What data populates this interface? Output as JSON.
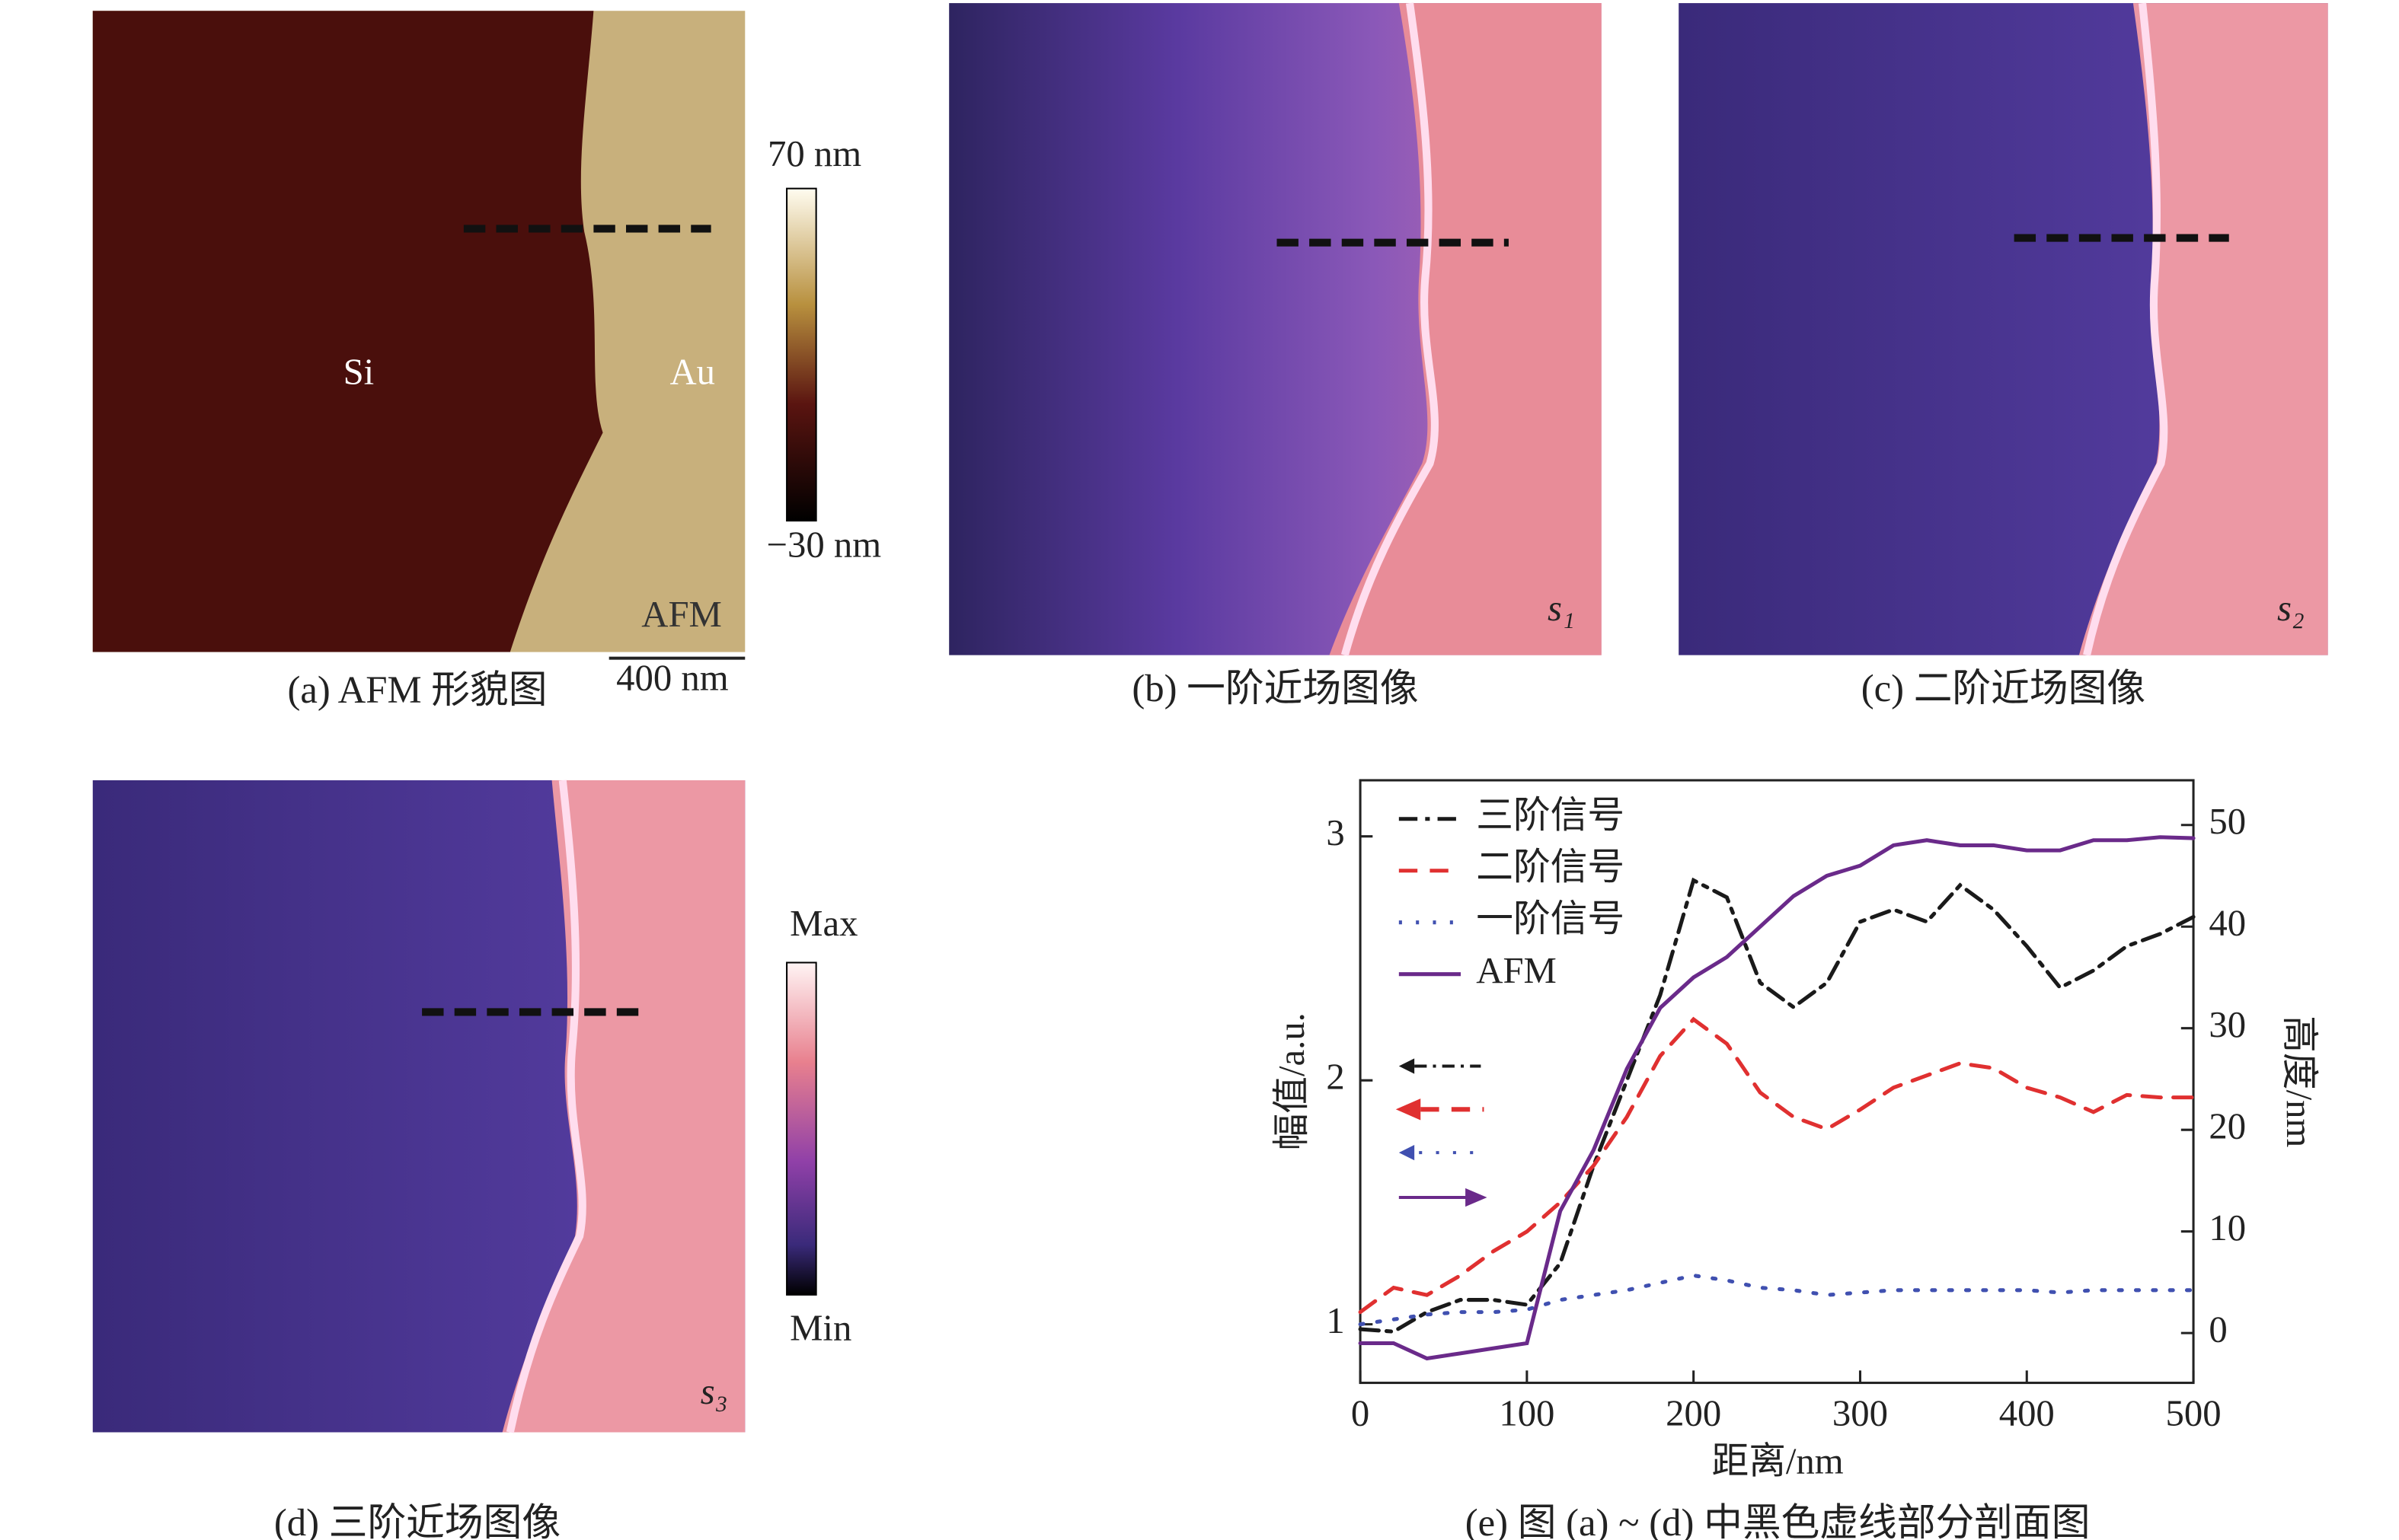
{
  "panels": [
    {
      "caption": "(a) AFM 形貌图",
      "labels": [
        "Si",
        "Au",
        "AFM"
      ],
      "colorbar": [
        "70 nm",
        "−30 nm"
      ],
      "scalebar": "400 nm"
    },
    {
      "caption": "(b) 一阶近场图像",
      "labels": [
        "s₁"
      ]
    },
    {
      "caption": "(c) 二阶近场图像",
      "labels": [
        "s₂"
      ]
    },
    {
      "caption": "(d) 三阶近场图像",
      "labels": [
        "s₃"
      ],
      "colorbar": [
        "Max",
        "Min"
      ]
    }
  ],
  "chart_data": {
    "type": "line",
    "caption": "(e) 图 (a) ~ (d) 中黑色虚线部分剖面图",
    "xlabel": "距离/nm",
    "ylabel": "幅值/a.u.",
    "y2label": "高度/nm",
    "x": [
      0,
      20,
      40,
      60,
      80,
      100,
      120,
      140,
      160,
      180,
      200,
      220,
      240,
      260,
      280,
      300,
      320,
      340,
      360,
      380,
      400,
      420,
      440,
      460,
      480,
      500
    ],
    "xlim": [
      0,
      500
    ],
    "xticks": [
      0,
      100,
      200,
      300,
      400,
      500
    ],
    "ylim": [
      0.76,
      3.23
    ],
    "yticks": [
      1,
      2,
      3
    ],
    "y2lim": [
      -4.9,
      54.4
    ],
    "y2ticks": [
      0,
      10,
      20,
      30,
      40,
      50
    ],
    "series": [
      {
        "name": "三阶信号",
        "color": "#1a1a1a",
        "dash": "12 5 3 5",
        "values": [
          0.98,
          0.97,
          1.05,
          1.1,
          1.1,
          1.08,
          1.25,
          1.65,
          2.0,
          2.35,
          2.82,
          2.75,
          2.4,
          2.3,
          2.4,
          2.65,
          2.7,
          2.65,
          2.8,
          2.7,
          2.55,
          2.38,
          2.45,
          2.55,
          2.6,
          2.67
        ]
      },
      {
        "name": "二阶信号",
        "color": "#e03030",
        "dash": "12 8",
        "values": [
          1.05,
          1.15,
          1.12,
          1.2,
          1.3,
          1.38,
          1.5,
          1.65,
          1.85,
          2.1,
          2.25,
          2.15,
          1.95,
          1.85,
          1.8,
          1.88,
          1.97,
          2.02,
          2.07,
          2.05,
          1.97,
          1.93,
          1.87,
          1.94,
          1.93,
          1.93
        ]
      },
      {
        "name": "一阶信号",
        "color": "#4050b0",
        "dash": "2 9",
        "values": [
          1.0,
          1.02,
          1.04,
          1.05,
          1.05,
          1.06,
          1.1,
          1.12,
          1.14,
          1.17,
          1.2,
          1.18,
          1.15,
          1.14,
          1.12,
          1.13,
          1.14,
          1.14,
          1.14,
          1.14,
          1.14,
          1.13,
          1.14,
          1.14,
          1.14,
          1.14
        ]
      },
      {
        "name": "AFM",
        "color": "#6a2a8a",
        "dash": "",
        "axis": "y2",
        "values": [
          -1,
          -1,
          -2.5,
          -2,
          -1.5,
          -1,
          12,
          18,
          26,
          32,
          35,
          37,
          40,
          43,
          45,
          46,
          48,
          48.5,
          48,
          48,
          47.5,
          47.5,
          48.5,
          48.5,
          48.8,
          48.7
        ]
      }
    ]
  }
}
